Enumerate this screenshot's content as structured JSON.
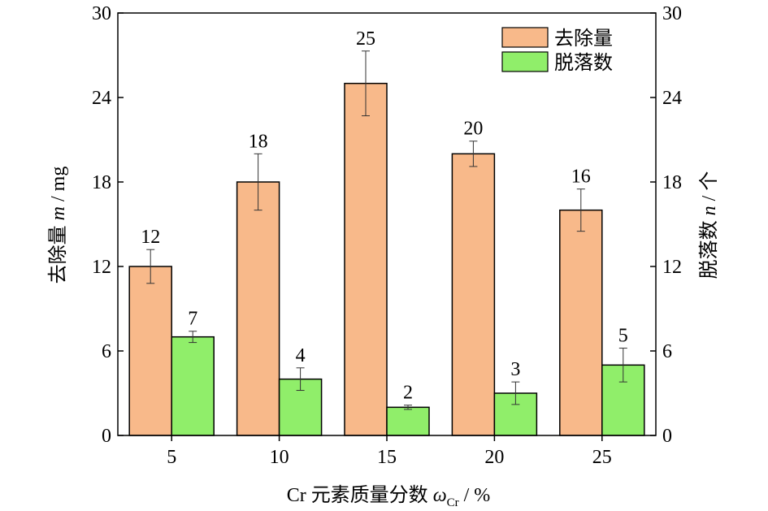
{
  "chart_data": {
    "type": "bar",
    "categories": [
      "5",
      "10",
      "15",
      "20",
      "25"
    ],
    "series": [
      {
        "name": "去除量",
        "axis": "left",
        "color": "#F8B98A",
        "values": [
          12,
          18,
          25,
          20,
          16
        ],
        "errors": [
          1.2,
          2.0,
          2.3,
          0.9,
          1.5
        ],
        "labels": [
          "12",
          "18",
          "25",
          "20",
          "16"
        ]
      },
      {
        "name": "脱落数",
        "axis": "right",
        "color": "#90EE6A",
        "values": [
          7,
          4,
          2,
          3,
          5
        ],
        "errors": [
          0.4,
          0.8,
          0.15,
          0.8,
          1.2
        ],
        "labels": [
          "7",
          "4",
          "2",
          "3",
          "5"
        ]
      }
    ],
    "xlabel": {
      "prefix": "Cr 元素质量分数 ",
      "symbol": "ω",
      "sub": "Cr",
      "suffix": " / %"
    },
    "ylabel_left": {
      "prefix": "去除量 ",
      "symbol": "m",
      "suffix": " / mg"
    },
    "ylabel_right": {
      "prefix": "脱落数 ",
      "symbol": "n",
      "suffix": " / 个"
    },
    "ylim": [
      0,
      30
    ],
    "yticks": [
      "0",
      "6",
      "12",
      "18",
      "24",
      "30"
    ],
    "grid": false,
    "legend_position": "top-right"
  }
}
